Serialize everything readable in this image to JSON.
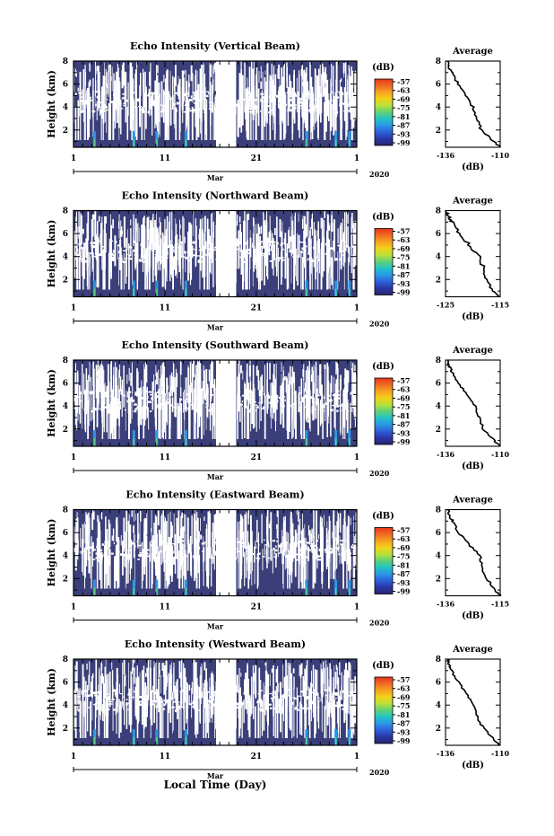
{
  "figure": {
    "xlabel": "Local Time (Day)",
    "colorbar_unit": "(dB)",
    "colorbar_ticks": [
      "-57",
      "-63",
      "-69",
      "-75",
      "-81",
      "-87",
      "-93",
      "-99"
    ],
    "colorbar_colors": [
      "#e8361d",
      "#f06a24",
      "#f7a31f",
      "#f2d21b",
      "#b8e23a",
      "#5fd07a",
      "#22c3c6",
      "#2a97e6",
      "#2d5fd8",
      "#2a36a6",
      "#27276b"
    ],
    "background_color": "#3a3f7a",
    "time_ticks": [
      "1",
      "11",
      "21",
      "1"
    ],
    "month_label": "Mar",
    "year_label": "2020",
    "height_ticks": [
      "2",
      "4",
      "6",
      "8"
    ],
    "height_label": "Height (km)",
    "avg_title": "Average",
    "avg_xlabel": "(dB)"
  },
  "chart_data": [
    {
      "type": "heatmap",
      "title": "Echo Intensity (Vertical Beam)",
      "xlabel": "",
      "ylabel": "Height (km)",
      "xlim": [
        1,
        32
      ],
      "ylim": [
        0.5,
        8
      ],
      "gap_days": [
        16.6,
        18.8
      ],
      "avg_xticks": [
        "-136",
        "-110"
      ],
      "avg_xlim": [
        -136,
        -110
      ],
      "avg_profile": {
        "height": [
          0.5,
          1,
          2,
          3,
          4,
          5,
          6,
          7,
          7.5,
          8
        ],
        "db": [
          -110,
          -113,
          -119,
          -121,
          -123,
          -126,
          -130,
          -133,
          -134.5,
          -135
        ]
      }
    },
    {
      "type": "heatmap",
      "title": "Echo Intensity (Northward Beam)",
      "xlabel": "",
      "ylabel": "Height (km)",
      "xlim": [
        1,
        32
      ],
      "ylim": [
        0.5,
        8
      ],
      "gap_days": [
        16.6,
        18.8
      ],
      "avg_xticks": [
        "-125",
        "-115"
      ],
      "avg_xlim": [
        -128,
        -112
      ],
      "avg_profile": {
        "height": [
          0.5,
          1,
          2,
          3,
          4,
          5,
          6,
          7,
          7.5,
          8
        ],
        "db": [
          -112,
          -114,
          -116,
          -117,
          -118,
          -121,
          -124,
          -126,
          -127,
          -128
        ]
      }
    },
    {
      "type": "heatmap",
      "title": "Echo Intensity (Southward Beam)",
      "xlabel": "",
      "ylabel": "Height (km)",
      "xlim": [
        1,
        32
      ],
      "ylim": [
        0.5,
        8
      ],
      "gap_days": [
        16.6,
        18.8
      ],
      "avg_xticks": [
        "-136",
        "-110"
      ],
      "avg_xlim": [
        -136,
        -110
      ],
      "avg_profile": {
        "height": [
          0.5,
          1,
          2,
          3,
          4,
          5,
          6,
          7,
          7.5,
          8
        ],
        "db": [
          -110,
          -113,
          -118,
          -120,
          -122,
          -126,
          -130,
          -133,
          -134.5,
          -135
        ]
      }
    },
    {
      "type": "heatmap",
      "title": "Echo Intensity (Eastward Beam)",
      "xlabel": "",
      "ylabel": "Height (km)",
      "xlim": [
        1,
        32
      ],
      "ylim": [
        0.5,
        8
      ],
      "gap_days": [
        16.6,
        18.8
      ],
      "avg_xticks": [
        "-136",
        "-115"
      ],
      "avg_xlim": [
        -136,
        -112
      ],
      "avg_profile": {
        "height": [
          0.5,
          1,
          2,
          3,
          4,
          5,
          6,
          7,
          7.5,
          8
        ],
        "db": [
          -112,
          -114,
          -118,
          -120,
          -121,
          -126,
          -130,
          -133,
          -134.5,
          -135
        ]
      }
    },
    {
      "type": "heatmap",
      "title": "Echo Intensity (Westward Beam)",
      "xlabel": "",
      "ylabel": "Height (km)",
      "xlim": [
        1,
        32
      ],
      "ylim": [
        0.5,
        8
      ],
      "gap_days": [
        16.6,
        18.8
      ],
      "avg_xticks": [
        "-136",
        "-110"
      ],
      "avg_xlim": [
        -136,
        -110
      ],
      "avg_profile": {
        "height": [
          0.5,
          1,
          2,
          3,
          4,
          5,
          6,
          7,
          7.5,
          8
        ],
        "db": [
          -110,
          -113,
          -118,
          -121,
          -123,
          -126,
          -130,
          -133,
          -134.5,
          -135
        ]
      }
    }
  ]
}
